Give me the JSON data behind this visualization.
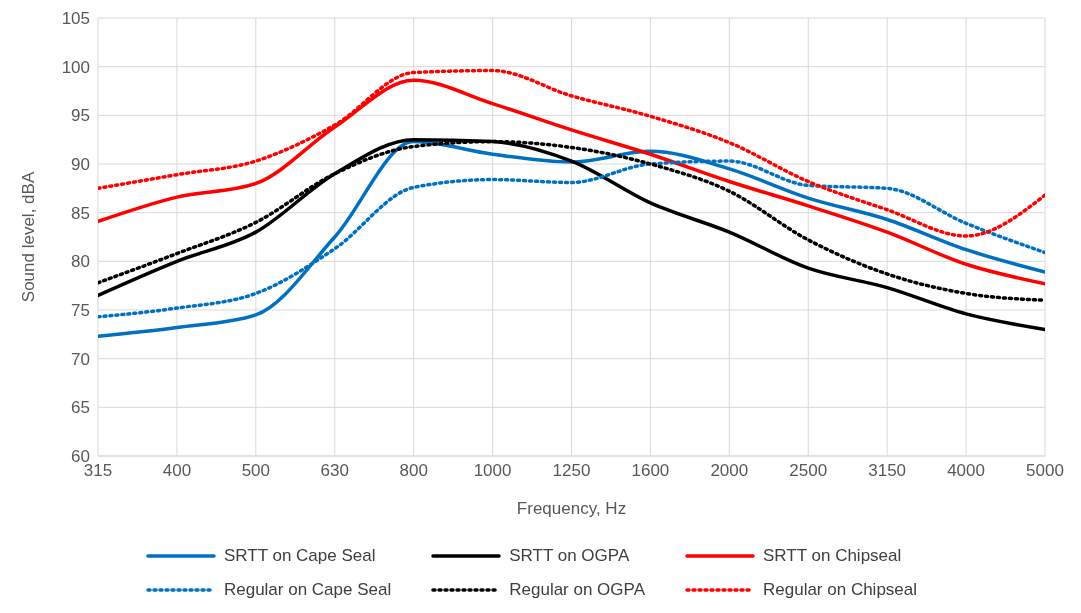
{
  "chart_data": {
    "type": "line",
    "xlabel": "Frequency, Hz",
    "ylabel": "Sound level, dBA",
    "categories": [
      "315",
      "400",
      "500",
      "630",
      "800",
      "1000",
      "1250",
      "1600",
      "2000",
      "2500",
      "3150",
      "4000",
      "5000"
    ],
    "ylim": [
      60,
      105
    ],
    "yticks": [
      60,
      65,
      70,
      75,
      80,
      85,
      90,
      95,
      100,
      105
    ],
    "grid": true,
    "legend": "bottom",
    "marker": "none",
    "series": [
      {
        "name": "SRTT on Cape Seal",
        "color": "#0070c0",
        "line_style": "solid",
        "values": [
          72.3,
          73.2,
          74.5,
          82.5,
          92.3,
          91,
          90.2,
          91.3,
          89.5,
          86.5,
          84.3,
          81.2,
          78.9
        ]
      },
      {
        "name": "SRTT on OGPA",
        "color": "#000000",
        "line_style": "solid",
        "values": [
          76.5,
          80,
          83,
          89,
          92.5,
          92.3,
          90.3,
          86,
          83,
          79.3,
          77.3,
          74.6,
          73
        ]
      },
      {
        "name": "SRTT on Chipseal",
        "color": "#ff0000",
        "line_style": "solid",
        "values": [
          84.1,
          86.6,
          88,
          93.8,
          98.6,
          96.2,
          93.5,
          91,
          88.2,
          85.7,
          83,
          79.7,
          77.7
        ]
      },
      {
        "name": "Regular on Cape Seal",
        "color": "#0070c0",
        "line_style": "dotted",
        "values": [
          74.3,
          75.2,
          76.7,
          81.3,
          87.6,
          88.4,
          88.1,
          90,
          90.3,
          87.8,
          87.5,
          83.9,
          80.9
        ]
      },
      {
        "name": "Regular on OGPA",
        "color": "#000000",
        "line_style": "dotted",
        "values": [
          77.8,
          80.8,
          84,
          89,
          91.8,
          92.3,
          91.7,
          90,
          87.2,
          82.2,
          78.7,
          76.7,
          76
        ]
      },
      {
        "name": "Regular on Chipseal",
        "color": "#ff0000",
        "line_style": "dotted",
        "values": [
          87.5,
          88.9,
          90.3,
          94,
          99.4,
          99.6,
          97,
          94.9,
          92.2,
          88.2,
          85.3,
          82.6,
          86.8
        ]
      }
    ]
  }
}
